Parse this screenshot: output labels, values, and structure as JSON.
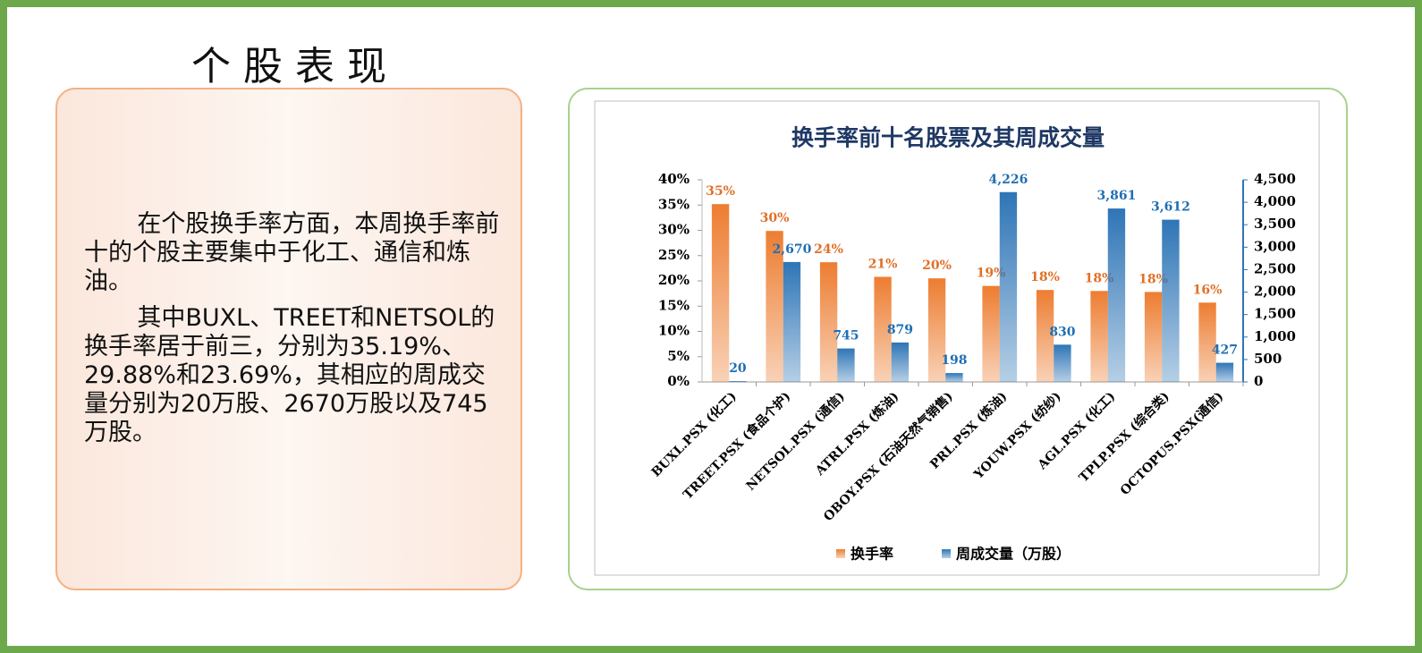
{
  "heading": "个股表现",
  "paragraphs": [
    "在个股换手率方面，本周换手率前十的个股主要集中于化工、通信和炼油。",
    "其中BUXL、TREET和NETSOL的换手率居于前三，分别为35.19%、29.88%和23.69%，其相应的周成交量分别为20万股、2670万股以及745万股。"
  ],
  "chart_data": {
    "type": "bar",
    "title": "换手率前十名股票及其周成交量",
    "categories": [
      "BUXL.PSX (化工)",
      "TREET.PSX (食品个护)",
      "NETSOL.PSX (通信)",
      "ATRL.PSX (炼油)",
      "OBOY.PSX (石油天然气销售)",
      "PRL.PSX (炼油)",
      "YOUW.PSX (纺纱)",
      "AGL.PSX (化工)",
      "TPLP.PSX (综合类)",
      "OCTOPUS.PSX(通信)"
    ],
    "series": [
      {
        "name": "换手率",
        "color": "#ed7d31",
        "values": [
          35.19,
          29.88,
          23.69,
          20.8,
          20.5,
          19,
          18.2,
          18,
          17.8,
          15.7
        ],
        "value_labels": [
          "35%",
          "30%",
          "24%",
          "21%",
          "20%",
          "19%",
          "18%",
          "18%",
          "18%",
          "16%"
        ]
      },
      {
        "name": "周成交量（万股）",
        "color": "#2e75b6",
        "axis": "y2",
        "values": [
          20,
          2670,
          745,
          879,
          198,
          4226,
          830,
          3861,
          3612,
          427
        ],
        "value_labels": [
          "20",
          "2,670",
          "745",
          "879",
          "198",
          "4,226",
          "830",
          "3,861",
          "3,612",
          "427"
        ]
      }
    ],
    "ylim": [
      0,
      40
    ],
    "yticks": [
      {
        "value": 0,
        "label": "0%"
      },
      {
        "value": 5,
        "label": "5%"
      },
      {
        "value": 10,
        "label": "10%"
      },
      {
        "value": 15,
        "label": "15%"
      },
      {
        "value": 20,
        "label": "20%"
      },
      {
        "value": 25,
        "label": "25%"
      },
      {
        "value": 30,
        "label": "30%"
      },
      {
        "value": 35,
        "label": "35%"
      },
      {
        "value": 40,
        "label": "40%"
      }
    ],
    "y2lim": [
      0,
      4500
    ],
    "y2ticks": [
      0,
      500,
      {
        "value": 1000,
        "label": "1,000"
      },
      {
        "value": 1500,
        "label": "1,500"
      },
      {
        "value": 2000,
        "label": "2,000"
      },
      {
        "value": 2500,
        "label": "2,500"
      },
      {
        "value": 3000,
        "label": "3,000"
      },
      {
        "value": 3500,
        "label": "3,500"
      },
      {
        "value": 4000,
        "label": "4,000"
      },
      {
        "value": 4500,
        "label": "4,500"
      }
    ],
    "legend": "bottom"
  }
}
